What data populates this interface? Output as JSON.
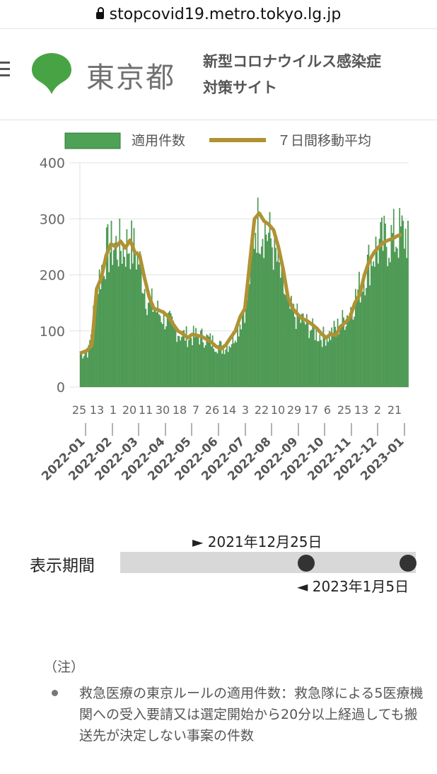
{
  "browser": {
    "url": "stopcovid19.metro.tokyo.lg.jp"
  },
  "header": {
    "logo_text": "東京都",
    "site_title_line1": "新型コロナウイルス感染症",
    "site_title_line2": "対策サイト"
  },
  "legend": {
    "bar_label": "適用件数",
    "line_label": "７日間移動平均"
  },
  "colors": {
    "bar": "#4ea155",
    "bar_border": "#2f7a36",
    "line": "#b09233",
    "logo_green": "#48a345"
  },
  "chart_data": {
    "type": "bar",
    "y_ticks": [
      "0",
      "100",
      "200",
      "300",
      "400"
    ],
    "ylim": [
      0,
      400
    ],
    "day_labels": [
      "25",
      "13",
      "1",
      "20",
      "11",
      "30",
      "18",
      "7",
      "26",
      "14",
      "3",
      "22",
      "10",
      "29",
      "17",
      "6",
      "25",
      "13",
      "2",
      "21"
    ],
    "month_labels": [
      "2022-01",
      "2022-02",
      "2022-03",
      "2022-04",
      "2022-05",
      "2022-06",
      "2022-07",
      "2022-08",
      "2022-09",
      "2022-10",
      "2022-11",
      "2022-12",
      "2023-01"
    ],
    "series": [
      {
        "name": "適用件数",
        "type": "bar",
        "daily_avg_points": [
          [
            0,
            60
          ],
          [
            7,
            65
          ],
          [
            14,
            180
          ],
          [
            21,
            240
          ],
          [
            28,
            255
          ],
          [
            35,
            250
          ],
          [
            42,
            258
          ],
          [
            49,
            230
          ],
          [
            56,
            160
          ],
          [
            63,
            140
          ],
          [
            70,
            125
          ],
          [
            77,
            110
          ],
          [
            84,
            95
          ],
          [
            91,
            90
          ],
          [
            98,
            92
          ],
          [
            105,
            88
          ],
          [
            112,
            80
          ],
          [
            119,
            70
          ],
          [
            126,
            80
          ],
          [
            133,
            110
          ],
          [
            140,
            160
          ],
          [
            147,
            295
          ],
          [
            154,
            290
          ],
          [
            161,
            260
          ],
          [
            168,
            200
          ],
          [
            175,
            140
          ],
          [
            182,
            125
          ],
          [
            189,
            115
          ],
          [
            196,
            100
          ],
          [
            203,
            90
          ],
          [
            210,
            95
          ],
          [
            217,
            110
          ],
          [
            224,
            130
          ],
          [
            231,
            160
          ],
          [
            238,
            200
          ],
          [
            245,
            240
          ],
          [
            252,
            255
          ],
          [
            259,
            265
          ],
          [
            266,
            270
          ],
          [
            269,
            275
          ]
        ]
      },
      {
        "name": "７日間移動平均",
        "type": "line",
        "points": [
          [
            0,
            60
          ],
          [
            6,
            65
          ],
          [
            10,
            75
          ],
          [
            14,
            175
          ],
          [
            18,
            195
          ],
          [
            22,
            235
          ],
          [
            26,
            255
          ],
          [
            30,
            250
          ],
          [
            34,
            260
          ],
          [
            38,
            248
          ],
          [
            42,
            262
          ],
          [
            46,
            240
          ],
          [
            50,
            235
          ],
          [
            54,
            195
          ],
          [
            58,
            160
          ],
          [
            62,
            140
          ],
          [
            66,
            137
          ],
          [
            70,
            133
          ],
          [
            74,
            125
          ],
          [
            78,
            112
          ],
          [
            82,
            100
          ],
          [
            86,
            95
          ],
          [
            90,
            88
          ],
          [
            94,
            94
          ],
          [
            98,
            92
          ],
          [
            102,
            90
          ],
          [
            106,
            85
          ],
          [
            110,
            80
          ],
          [
            114,
            72
          ],
          [
            118,
            68
          ],
          [
            122,
            75
          ],
          [
            126,
            88
          ],
          [
            130,
            100
          ],
          [
            134,
            125
          ],
          [
            138,
            140
          ],
          [
            142,
            220
          ],
          [
            146,
            300
          ],
          [
            150,
            310
          ],
          [
            154,
            296
          ],
          [
            158,
            290
          ],
          [
            162,
            280
          ],
          [
            166,
            250
          ],
          [
            170,
            210
          ],
          [
            174,
            160
          ],
          [
            178,
            140
          ],
          [
            182,
            130
          ],
          [
            186,
            122
          ],
          [
            190,
            118
          ],
          [
            194,
            112
          ],
          [
            198,
            105
          ],
          [
            202,
            95
          ],
          [
            206,
            88
          ],
          [
            210,
            95
          ],
          [
            214,
            92
          ],
          [
            218,
            108
          ],
          [
            222,
            115
          ],
          [
            226,
            125
          ],
          [
            230,
            150
          ],
          [
            234,
            165
          ],
          [
            238,
            200
          ],
          [
            242,
            225
          ],
          [
            246,
            240
          ],
          [
            250,
            250
          ],
          [
            254,
            258
          ],
          [
            258,
            262
          ],
          [
            262,
            265
          ],
          [
            266,
            270
          ],
          [
            269,
            272
          ]
        ]
      }
    ]
  },
  "period": {
    "label": "表示期間",
    "start": "► 2021年12月25日",
    "end": "◄ 2023年1月5日"
  },
  "notes": {
    "head": "（注）",
    "items": [
      "救急医療の東京ルールの適用件数：救急隊による5医療機関への受入要請又は選定開始から20分以上経過しても搬送先が決定しない事案の件数"
    ]
  }
}
